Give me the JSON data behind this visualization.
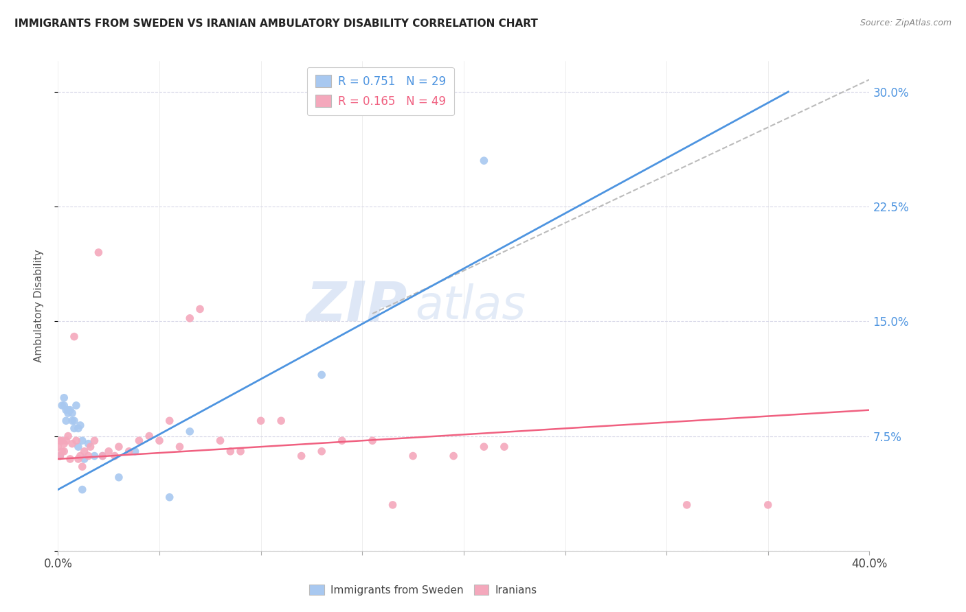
{
  "title": "IMMIGRANTS FROM SWEDEN VS IRANIAN AMBULATORY DISABILITY CORRELATION CHART",
  "source": "Source: ZipAtlas.com",
  "ylabel": "Ambulatory Disability",
  "xlim": [
    0.0,
    0.4
  ],
  "ylim": [
    0.0,
    0.32
  ],
  "xticks": [
    0.0,
    0.05,
    0.1,
    0.15,
    0.2,
    0.25,
    0.3,
    0.35,
    0.4
  ],
  "yticks": [
    0.0,
    0.075,
    0.15,
    0.225,
    0.3
  ],
  "ytick_labels_right": [
    "",
    "7.5%",
    "15.0%",
    "22.5%",
    "30.0%"
  ],
  "sweden_color": "#a8c8f0",
  "iranians_color": "#f4a8bc",
  "sweden_line_color": "#4d94e0",
  "iranians_line_color": "#f06080",
  "dashed_line_color": "#bbbbbb",
  "legend_r_sweden": "R = 0.751",
  "legend_n_sweden": "N = 29",
  "legend_r_iranians": "R = 0.165",
  "legend_n_iranians": "N = 49",
  "background_color": "#ffffff",
  "grid_color": "#d8d8e8",
  "watermark_color": "#c8d8f0",
  "sweden_points_x": [
    0.001,
    0.002,
    0.003,
    0.003,
    0.004,
    0.004,
    0.005,
    0.005,
    0.006,
    0.007,
    0.007,
    0.008,
    0.008,
    0.009,
    0.01,
    0.01,
    0.011,
    0.012,
    0.013,
    0.015,
    0.018,
    0.022,
    0.03,
    0.038,
    0.055,
    0.065,
    0.13,
    0.21,
    0.012
  ],
  "sweden_points_y": [
    0.062,
    0.095,
    0.095,
    0.1,
    0.085,
    0.092,
    0.09,
    0.092,
    0.092,
    0.085,
    0.09,
    0.08,
    0.085,
    0.095,
    0.08,
    0.068,
    0.082,
    0.072,
    0.06,
    0.07,
    0.062,
    0.062,
    0.048,
    0.065,
    0.035,
    0.078,
    0.115,
    0.255,
    0.04
  ],
  "iranians_points_x": [
    0.0,
    0.001,
    0.001,
    0.002,
    0.002,
    0.003,
    0.003,
    0.004,
    0.005,
    0.006,
    0.007,
    0.008,
    0.009,
    0.01,
    0.011,
    0.012,
    0.013,
    0.015,
    0.016,
    0.018,
    0.02,
    0.022,
    0.025,
    0.028,
    0.03,
    0.035,
    0.04,
    0.045,
    0.05,
    0.055,
    0.06,
    0.065,
    0.07,
    0.08,
    0.085,
    0.09,
    0.1,
    0.11,
    0.12,
    0.13,
    0.14,
    0.155,
    0.165,
    0.175,
    0.195,
    0.21,
    0.22,
    0.31,
    0.35
  ],
  "iranians_points_y": [
    0.068,
    0.062,
    0.072,
    0.072,
    0.065,
    0.065,
    0.07,
    0.072,
    0.075,
    0.06,
    0.07,
    0.14,
    0.072,
    0.06,
    0.062,
    0.055,
    0.065,
    0.062,
    0.068,
    0.072,
    0.195,
    0.062,
    0.065,
    0.062,
    0.068,
    0.065,
    0.072,
    0.075,
    0.072,
    0.085,
    0.068,
    0.152,
    0.158,
    0.072,
    0.065,
    0.065,
    0.085,
    0.085,
    0.062,
    0.065,
    0.072,
    0.072,
    0.03,
    0.062,
    0.062,
    0.068,
    0.068,
    0.03,
    0.03
  ],
  "sweden_line_x": [
    0.0,
    0.36
  ],
  "sweden_line_y": [
    0.04,
    0.3
  ],
  "iranians_line_x": [
    0.0,
    0.4
  ],
  "iranians_line_y": [
    0.06,
    0.092
  ],
  "dashed_line_x": [
    0.155,
    0.4
  ],
  "dashed_line_y": [
    0.155,
    0.308
  ]
}
